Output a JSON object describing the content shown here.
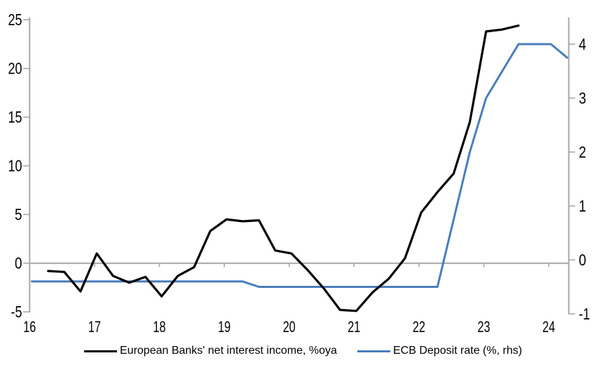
{
  "chart_data": {
    "type": "line",
    "title": "",
    "frequency": "quarterly",
    "x_tick_labels": [
      "16",
      "17",
      "18",
      "19",
      "20",
      "21",
      "22",
      "23",
      "24"
    ],
    "left_axis": {
      "ticks": [
        25,
        20,
        15,
        10,
        5,
        0,
        -5
      ],
      "range": [
        -5.2,
        25.3
      ],
      "zero_gridline": true
    },
    "right_axis": {
      "ticks": [
        4,
        3,
        2,
        1,
        0,
        -1
      ],
      "range": [
        -1.05,
        4.5
      ]
    },
    "series": [
      {
        "name": "European Banks' net interest income, %oya",
        "axis": "left",
        "color": "#000000",
        "quarters": [
          "16Q2",
          "16Q3",
          "16Q4",
          "17Q1",
          "17Q2",
          "17Q3",
          "17Q4",
          "18Q1",
          "18Q2",
          "18Q3",
          "18Q4",
          "19Q1",
          "19Q2",
          "19Q3",
          "19Q4",
          "20Q1",
          "20Q2",
          "20Q3",
          "20Q4",
          "21Q1",
          "21Q2",
          "21Q3",
          "21Q4",
          "22Q1",
          "22Q2",
          "22Q3",
          "22Q4",
          "23Q1",
          "23Q2",
          "23Q3"
        ],
        "values": [
          -0.8,
          -0.9,
          -2.9,
          1.0,
          -1.3,
          -2.0,
          -1.4,
          -3.4,
          -1.3,
          -0.4,
          3.3,
          4.5,
          4.3,
          4.4,
          1.3,
          1.0,
          -0.7,
          -2.6,
          -4.8,
          -4.9,
          -3.0,
          -1.6,
          0.5,
          5.2,
          7.3,
          9.2,
          14.5,
          23.8,
          24.0,
          24.4
        ]
      },
      {
        "name": "ECB Deposit rate (%, rhs)",
        "axis": "right",
        "color": "#4a7ebb",
        "quarters": [
          "16Q1",
          "16Q2",
          "16Q3",
          "16Q4",
          "17Q1",
          "17Q2",
          "17Q3",
          "17Q4",
          "18Q1",
          "18Q2",
          "18Q3",
          "18Q4",
          "19Q1",
          "19Q2",
          "19Q3",
          "19Q4",
          "20Q1",
          "20Q2",
          "20Q3",
          "20Q4",
          "21Q1",
          "21Q2",
          "21Q3",
          "21Q4",
          "22Q1",
          "22Q2",
          "22Q3",
          "22Q4",
          "23Q1",
          "23Q2",
          "23Q3",
          "23Q4",
          "24Q1",
          "24Q2"
        ],
        "values": [
          -0.4,
          -0.4,
          -0.4,
          -0.4,
          -0.4,
          -0.4,
          -0.4,
          -0.4,
          -0.4,
          -0.4,
          -0.4,
          -0.4,
          -0.4,
          -0.4,
          -0.5,
          -0.5,
          -0.5,
          -0.5,
          -0.5,
          -0.5,
          -0.5,
          -0.5,
          -0.5,
          -0.5,
          -0.5,
          -0.5,
          0.75,
          2.0,
          3.0,
          3.5,
          4.0,
          4.0,
          4.0,
          3.75
        ]
      }
    ],
    "legend_position": "bottom",
    "grid": "zero-line-only"
  },
  "colors": {
    "axis_line": "#a8a8a8",
    "background": "#ffffff",
    "text": "#000000"
  }
}
